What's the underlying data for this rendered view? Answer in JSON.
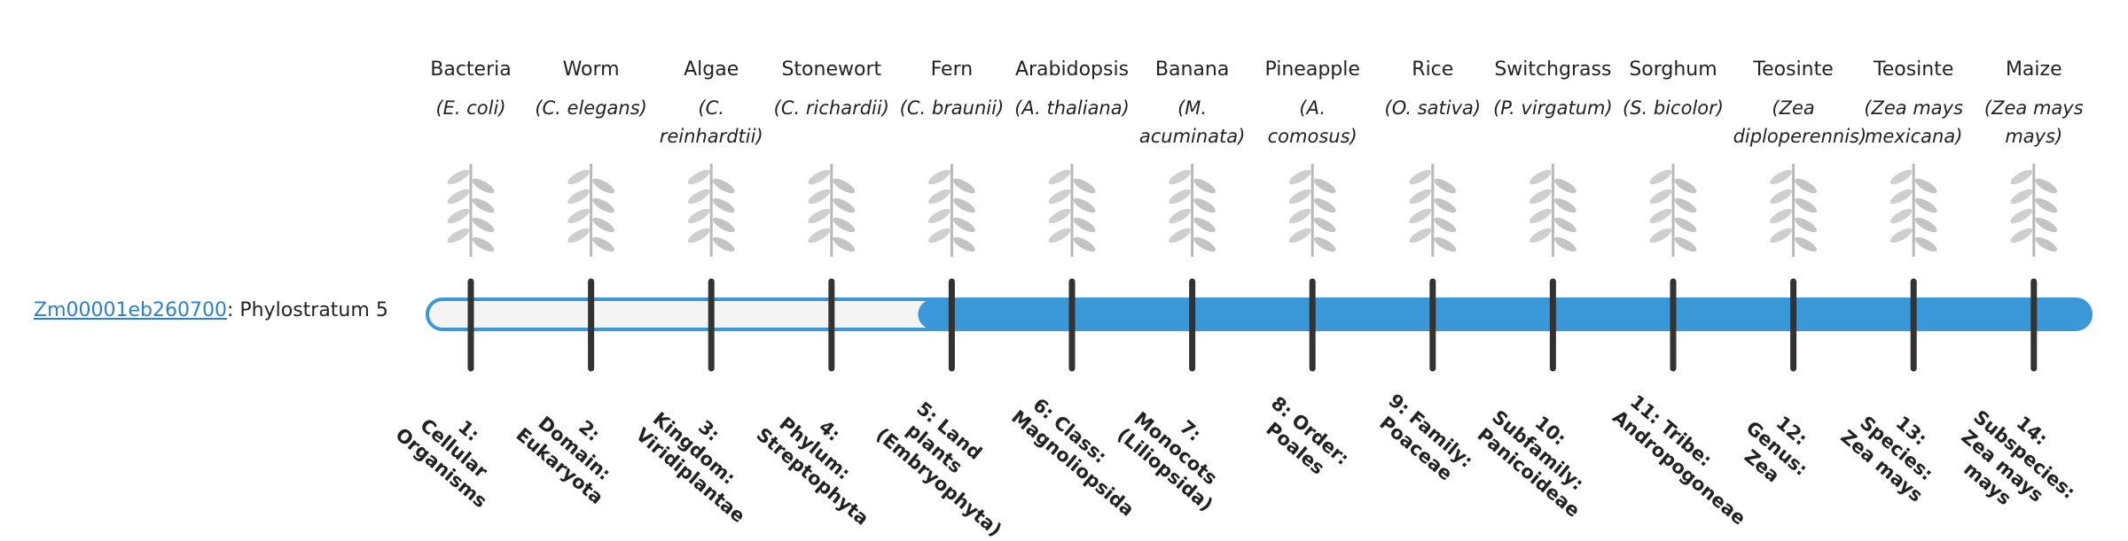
{
  "gene": {
    "id": "Zm00001eb260700",
    "label": ": Phylostratum",
    "phylostratum": 5
  },
  "strata": [
    {
      "organism": "Bacteria",
      "species": "(E. coli)",
      "rank": "1: Cellular Organisms"
    },
    {
      "organism": "Worm",
      "species": "(C. elegans)",
      "rank": "2: Domain: Eukaryota"
    },
    {
      "organism": "Algae",
      "species": "(C. reinhardtii)",
      "rank": "3: Kingdom: Viridiplantae"
    },
    {
      "organism": "Stonewort",
      "species": "(C. richardii)",
      "rank": "4: Phylum: Streptophyta"
    },
    {
      "organism": "Fern",
      "species": "(C. braunii)",
      "rank": "5: Land plants (Embryophyta)"
    },
    {
      "organism": "Arabidopsis",
      "species": "(A. thaliana)",
      "rank": "6: Class: Magnoliopsida"
    },
    {
      "organism": "Banana",
      "species": "(M. acuminata)",
      "rank": "7: Monocots (Liliopsida)"
    },
    {
      "organism": "Pineapple",
      "species": "(A. comosus)",
      "rank": "8: Order: Poales"
    },
    {
      "organism": "Rice",
      "species": "(O. sativa)",
      "rank": "9: Family: Poaceae"
    },
    {
      "organism": "Switchgrass",
      "species": "(P. virgatum)",
      "rank": "10: Subfamily: Panicoideae"
    },
    {
      "organism": "Sorghum",
      "species": "(S. bicolor)",
      "rank": "11: Tribe: Andropogoneae"
    },
    {
      "organism": "Teosinte",
      "species": "(Zea diploperennis)",
      "rank": "12: Genus: Zea"
    },
    {
      "organism": "Teosinte",
      "species": "(Zea mays mexicana)",
      "rank": "13: Species: Zea mays"
    },
    {
      "organism": "Maize",
      "species": "(Zea mays mays)",
      "rank": "14: Subspecies: Zea mays mays"
    }
  ]
}
